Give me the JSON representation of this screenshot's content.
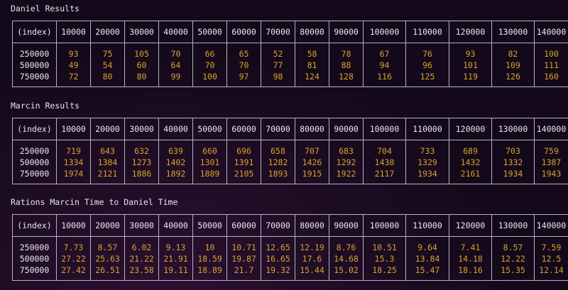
{
  "sections": [
    {
      "title": "Daniel Results",
      "header": [
        "(index)",
        "10000",
        "20000",
        "30000",
        "40000",
        "50000",
        "60000",
        "70000",
        "80000",
        "90000",
        "100000",
        "110000",
        "120000",
        "130000",
        "140000"
      ],
      "row_indices": [
        "250000",
        "500000",
        "750000"
      ],
      "columns": [
        [
          "93",
          "49",
          "72"
        ],
        [
          "75",
          "54",
          "80"
        ],
        [
          "105",
          "60",
          "80"
        ],
        [
          "70",
          "64",
          "99"
        ],
        [
          "66",
          "70",
          "100"
        ],
        [
          "65",
          "70",
          "97"
        ],
        [
          "52",
          "77",
          "98"
        ],
        [
          "58",
          "81",
          "124"
        ],
        [
          "78",
          "88",
          "128"
        ],
        [
          "67",
          "94",
          "116"
        ],
        [
          "76",
          "96",
          "125"
        ],
        [
          "93",
          "101",
          "119"
        ],
        [
          "82",
          "109",
          "126"
        ],
        [
          "100",
          "111",
          "160"
        ]
      ]
    },
    {
      "title": "Marcin Results",
      "header": [
        "(index)",
        "10000",
        "20000",
        "30000",
        "40000",
        "50000",
        "60000",
        "70000",
        "80000",
        "90000",
        "100000",
        "110000",
        "120000",
        "130000",
        "140000"
      ],
      "row_indices": [
        "250000",
        "500000",
        "750000"
      ],
      "columns": [
        [
          "719",
          "1334",
          "1974"
        ],
        [
          "643",
          "1384",
          "2121"
        ],
        [
          "632",
          "1273",
          "1886"
        ],
        [
          "639",
          "1402",
          "1892"
        ],
        [
          "660",
          "1301",
          "1889"
        ],
        [
          "696",
          "1391",
          "2105"
        ],
        [
          "658",
          "1282",
          "1893"
        ],
        [
          "707",
          "1426",
          "1915"
        ],
        [
          "683",
          "1292",
          "1922"
        ],
        [
          "704",
          "1438",
          "2117"
        ],
        [
          "733",
          "1329",
          "1934"
        ],
        [
          "689",
          "1432",
          "2161"
        ],
        [
          "703",
          "1332",
          "1934"
        ],
        [
          "759",
          "1387",
          "1943"
        ]
      ]
    },
    {
      "title": "Rations Marcin Time to Daniel Time",
      "header": [
        "(index)",
        "10000",
        "20000",
        "30000",
        "40000",
        "50000",
        "60000",
        "70000",
        "80000",
        "90000",
        "100000",
        "110000",
        "120000",
        "130000",
        "140000"
      ],
      "row_indices": [
        "250000",
        "500000",
        "750000"
      ],
      "columns": [
        [
          "7.73",
          "27.22",
          "27.42"
        ],
        [
          "8.57",
          "25.63",
          "26.51"
        ],
        [
          "6.02",
          "21.22",
          "23.58"
        ],
        [
          "9.13",
          "21.91",
          "19.11"
        ],
        [
          "10",
          "18.59",
          "18.89"
        ],
        [
          "10.71",
          "19.87",
          "21.7"
        ],
        [
          "12.65",
          "16.65",
          "19.32"
        ],
        [
          "12.19",
          "17.6",
          "15.44"
        ],
        [
          "8.76",
          "14.68",
          "15.02"
        ],
        [
          "10.51",
          "15.3",
          "18.25"
        ],
        [
          "9.64",
          "13.84",
          "15.47"
        ],
        [
          "7.41",
          "14.18",
          "18.16"
        ],
        [
          "8.57",
          "12.22",
          "15.35"
        ],
        [
          "7.59",
          "12.5",
          "12.14"
        ]
      ]
    }
  ],
  "colors": {
    "background": "#14091a",
    "text": "#e6e2ea",
    "value": "#d8a32a",
    "border": "#b9b2c2"
  }
}
